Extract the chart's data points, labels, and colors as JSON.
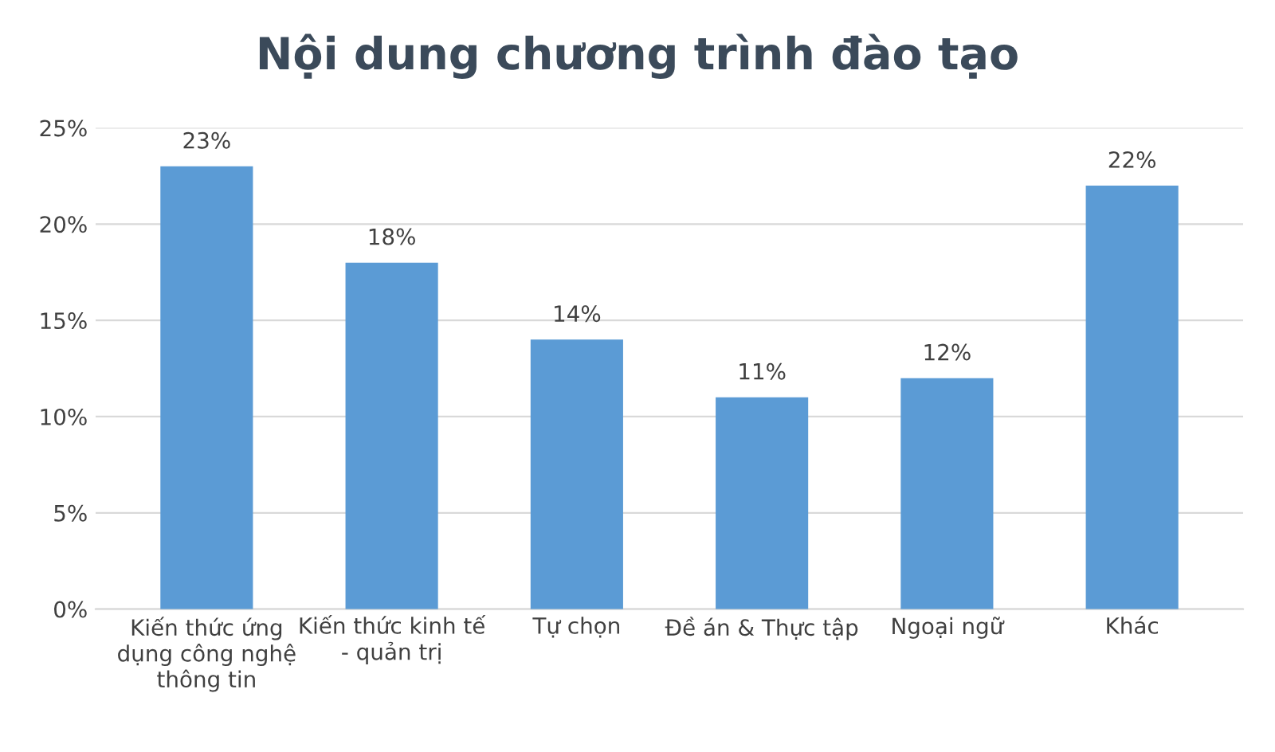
{
  "chart_data": {
    "type": "bar",
    "title": "Nội dung chương trình đào tạo",
    "categories": [
      "Kiến thức ứng\ndụng công nghệ\nthông tin",
      "Kiến thức kinh tế\n- quản trị",
      "Tự chọn",
      "Đề án & Thực tập",
      "Ngoại ngữ",
      "Khác"
    ],
    "values": [
      23,
      18,
      14,
      11,
      12,
      22
    ],
    "value_labels": [
      "23%",
      "18%",
      "14%",
      "11%",
      "12%",
      "22%"
    ],
    "color": "#5b9bd5",
    "ylim": [
      0,
      25
    ],
    "yticks": [
      {
        "value": 0,
        "label": "0%"
      },
      {
        "value": 5,
        "label": "5%"
      },
      {
        "value": 10,
        "label": "10%"
      },
      {
        "value": 15,
        "label": "15%"
      },
      {
        "value": 20,
        "label": "20%"
      },
      {
        "value": 25,
        "label": "25%"
      }
    ],
    "grid": "y"
  }
}
